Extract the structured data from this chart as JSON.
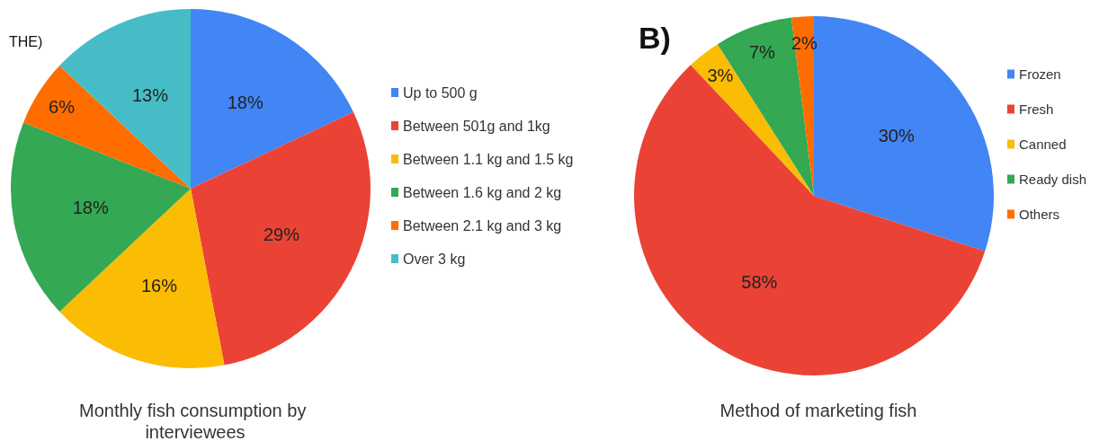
{
  "chart_data": [
    {
      "type": "pie",
      "title": "Monthly fish consumption by interviewees",
      "annotations": [
        "THE)"
      ],
      "categories": [
        "Up to 500 g",
        "Between 501g and 1kg",
        "Between 1.1 kg and 1.5 kg",
        "Between 1.6 kg and 2 kg",
        "Between 2.1 kg and 3 kg",
        "Over 3 kg"
      ],
      "values": [
        18,
        29,
        16,
        18,
        6,
        13
      ],
      "value_labels": [
        "18%",
        "29%",
        "16%",
        "18%",
        "6%",
        "13%"
      ],
      "colors": [
        "#4285f4",
        "#ea4335",
        "#fbbc04",
        "#34a853",
        "#ff6d01",
        "#46bdc6"
      ],
      "legend": "right"
    },
    {
      "type": "pie",
      "title": "Method of marketing fish",
      "annotations": [
        "B)"
      ],
      "categories": [
        "Frozen",
        "Fresh",
        "Canned",
        "Ready dish",
        "Others"
      ],
      "values": [
        30,
        58,
        3,
        7,
        2
      ],
      "value_labels": [
        "30%",
        "58%",
        "3%",
        "7%",
        "2%"
      ],
      "colors": [
        "#4285f4",
        "#ea4335",
        "#fbbc04",
        "#34a853",
        "#ff6d01"
      ],
      "legend": "right"
    }
  ]
}
